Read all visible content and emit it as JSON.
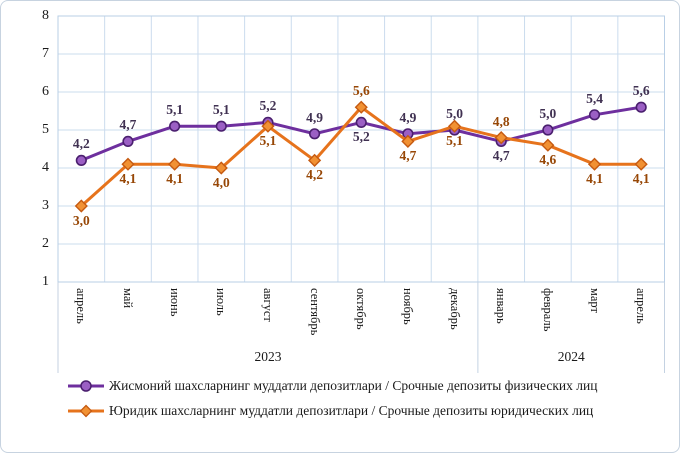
{
  "chart_data": {
    "type": "line",
    "categories": [
      "апрель",
      "май",
      "июнь",
      "июль",
      "август",
      "сентябрь",
      "октябрь",
      "ноябрь",
      "декабрь",
      "январь",
      "февраль",
      "март",
      "апрель"
    ],
    "year_groups": [
      {
        "label": "2023",
        "span": 9
      },
      {
        "label": "2024",
        "span": 4
      }
    ],
    "ylim": [
      1,
      8
    ],
    "yticks": [
      1,
      2,
      3,
      4,
      5,
      6,
      7,
      8
    ],
    "grid": true,
    "legend_position": "bottom",
    "colors": {
      "gridline": "#cbdcee",
      "plot_border": "#b9cfe6",
      "separator": "#c4d2e2"
    },
    "series": [
      {
        "name": "Жисмоний шахсларнинг  муддатли  депозитлари / Срочные депозиты физических лиц",
        "marker": "circle",
        "color": "#6e2f9e",
        "marker_fill": "#9b5fc4",
        "marker_stroke": "#4a1f6e",
        "label_color": "#403152",
        "values": [
          4.2,
          4.7,
          5.1,
          5.1,
          5.2,
          4.9,
          5.2,
          4.9,
          5.0,
          4.7,
          5.0,
          5.4,
          5.6
        ],
        "labels": [
          "4,2",
          "4,7",
          "5,1",
          "5,1",
          "5,2",
          "4,9",
          "5,2",
          "4,9",
          "5,0",
          "4,7",
          "5,0",
          "5,4",
          "5,6"
        ],
        "label_positions": [
          "above",
          "above",
          "above",
          "above",
          "above",
          "above",
          "below",
          "above",
          "above",
          "below",
          "above",
          "above",
          "above"
        ]
      },
      {
        "name": "Юридик шахсларнинг  муддатли  депозитлари / Срочные депозиты юридических лиц",
        "marker": "diamond",
        "color": "#e6731c",
        "marker_fill": "#f19133",
        "marker_stroke": "#c55a11",
        "label_color": "#974706",
        "values": [
          3.0,
          4.1,
          4.1,
          4.0,
          5.1,
          4.2,
          5.6,
          4.7,
          5.1,
          4.8,
          4.6,
          4.1,
          4.1
        ],
        "labels": [
          "3,0",
          "4,1",
          "4,1",
          "4,0",
          "5,1",
          "4,2",
          "5,6",
          "4,7",
          "5,1",
          "4,8",
          "4,6",
          "4,1",
          "4,1"
        ],
        "label_positions": [
          "below",
          "below",
          "below",
          "below",
          "below",
          "below",
          "above",
          "below",
          "below",
          "above",
          "below",
          "below",
          "below"
        ]
      }
    ]
  }
}
